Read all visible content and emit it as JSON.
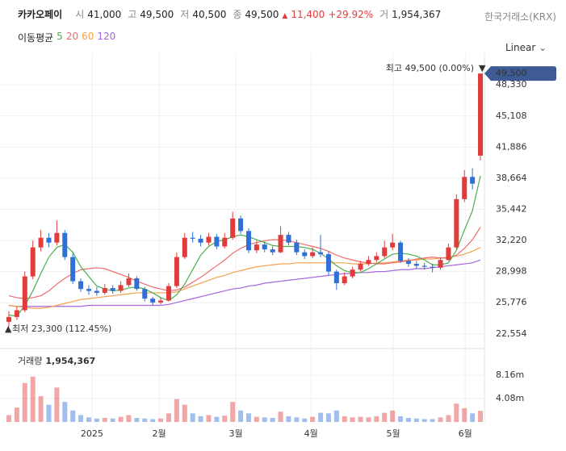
{
  "header": {
    "name": "카카오페이",
    "stats": [
      {
        "label": "시",
        "value": "41,000"
      },
      {
        "label": "고",
        "value": "49,500"
      },
      {
        "label": "저",
        "value": "40,500"
      },
      {
        "label": "종",
        "value": "49,500"
      }
    ],
    "change": "11,400",
    "change_pct": "+29.92%",
    "volume_label": "거",
    "volume_value": "1,954,367",
    "exchange": "한국거래소(KRX)",
    "scale_mode": "Linear"
  },
  "chart_data": {
    "type": "candlestick",
    "xticks": [
      {
        "value": 10.4,
        "label": "2025"
      },
      {
        "value": 18.8,
        "label": "2월"
      },
      {
        "value": 28.4,
        "label": "3월"
      },
      {
        "value": 37.8,
        "label": "4월"
      },
      {
        "value": 48.1,
        "label": "5월"
      },
      {
        "value": 57.1,
        "label": "6월"
      }
    ],
    "xlim": [
      -0.1,
      59.1
    ],
    "ylim": [
      21200,
      50600
    ],
    "yticks": [
      {
        "value": 48330,
        "label": "48,330"
      },
      {
        "value": 45108,
        "label": "45,108"
      },
      {
        "value": 41886,
        "label": "41,886"
      },
      {
        "value": 38664,
        "label": "38,664"
      },
      {
        "value": 35442,
        "label": "35,442"
      },
      {
        "value": 32220,
        "label": "32,220"
      },
      {
        "value": 28998,
        "label": "28,998"
      },
      {
        "value": 25776,
        "label": "25,776"
      },
      {
        "value": 22554,
        "label": "22,554"
      }
    ],
    "grid": true,
    "up_color": "#e03c3c",
    "down_color": "#2f6fd6",
    "open": [
      23800,
      24300,
      25000,
      28500,
      31500,
      32500,
      32000,
      33000,
      30500,
      28000,
      27200,
      27000,
      26800,
      27300,
      27000,
      27600,
      28300,
      27200,
      26200,
      25800,
      26000,
      27500,
      30500,
      32500,
      32400,
      32000,
      32600,
      31600,
      32500,
      34500,
      33200,
      31200,
      31800,
      31300,
      31000,
      32800,
      32000,
      31000,
      30600,
      31000,
      30800,
      29000,
      27800,
      28500,
      29200,
      29800,
      30200,
      30600,
      31500,
      32000,
      30100,
      29800,
      29600,
      29500,
      29400,
      30200,
      31500,
      36500,
      38800,
      41000
    ],
    "high": [
      24900,
      25400,
      29000,
      32200,
      33300,
      33000,
      34300,
      33300,
      30900,
      28300,
      27600,
      27400,
      27700,
      27600,
      28000,
      28800,
      28500,
      27400,
      26400,
      26300,
      27800,
      31000,
      33000,
      33100,
      32800,
      33000,
      32900,
      33000,
      35200,
      34800,
      33500,
      32200,
      32100,
      31600,
      33700,
      33100,
      32300,
      31300,
      31500,
      32800,
      31100,
      29200,
      28900,
      29500,
      30100,
      30600,
      31000,
      32200,
      32900,
      32200,
      30400,
      30100,
      29900,
      29800,
      30500,
      31900,
      37000,
      39500,
      39700,
      49500
    ],
    "low": [
      23300,
      24000,
      24800,
      28200,
      31100,
      31500,
      31700,
      30200,
      27700,
      26900,
      26600,
      26500,
      26600,
      26700,
      26800,
      27400,
      27000,
      25900,
      25500,
      25600,
      25900,
      27300,
      30300,
      32000,
      31600,
      31700,
      31300,
      31400,
      32300,
      32900,
      30900,
      30900,
      31000,
      30700,
      30900,
      31700,
      30700,
      30300,
      30400,
      30500,
      28600,
      27100,
      27600,
      28300,
      29000,
      29600,
      30000,
      30400,
      31200,
      29900,
      29500,
      29300,
      29200,
      28900,
      29200,
      30100,
      31300,
      36200,
      37500,
      40500
    ],
    "close": [
      24300,
      25000,
      28500,
      31500,
      32500,
      32000,
      33000,
      30500,
      28000,
      27200,
      27000,
      26800,
      27300,
      27000,
      27600,
      28300,
      27200,
      26200,
      25800,
      26000,
      27500,
      30500,
      32500,
      32400,
      32000,
      32600,
      31600,
      32500,
      34500,
      33200,
      31200,
      31800,
      31300,
      31000,
      32800,
      32000,
      31000,
      30600,
      31000,
      30800,
      29000,
      27800,
      28500,
      29200,
      29800,
      30200,
      30600,
      31500,
      32000,
      30100,
      29800,
      29600,
      29500,
      29400,
      30200,
      31500,
      36500,
      38800,
      38100,
      49500
    ],
    "ma_title": "이동평균",
    "series": [
      {
        "name": "5",
        "color": "#4caf50",
        "values": [
          24500,
          24400,
          25500,
          27000,
          28800,
          30500,
          31500,
          31800,
          31000,
          29500,
          28500,
          27500,
          27200,
          27000,
          27100,
          27300,
          27400,
          27200,
          26800,
          26300,
          26000,
          26600,
          27700,
          29200,
          30700,
          31600,
          32100,
          32300,
          32600,
          32800,
          32600,
          32300,
          32000,
          31700,
          31600,
          31600,
          31600,
          31500,
          31300,
          30900,
          30300,
          29600,
          29100,
          28900,
          28900,
          29300,
          29800,
          30300,
          30800,
          30900,
          30800,
          30600,
          30200,
          29700,
          29700,
          29900,
          31200,
          33300,
          35300,
          38900
        ]
      },
      {
        "name": "20",
        "color": "#ef6b6b",
        "values": [
          26500,
          26300,
          26200,
          26300,
          26500,
          27000,
          27700,
          28300,
          28800,
          29200,
          29300,
          29400,
          29300,
          29000,
          28700,
          28400,
          28000,
          27700,
          27400,
          27200,
          27000,
          27100,
          27400,
          27900,
          28400,
          29000,
          29600,
          30200,
          30900,
          31400,
          31800,
          32000,
          32200,
          32300,
          32300,
          32200,
          32000,
          31800,
          31600,
          31400,
          31100,
          30700,
          30400,
          30200,
          30000,
          29900,
          29800,
          29800,
          29900,
          30000,
          30100,
          30300,
          30400,
          30500,
          30400,
          30400,
          30700,
          31400,
          32300,
          33600
        ]
      },
      {
        "name": "60",
        "color": "#f5a04a",
        "values": [
          25500,
          25400,
          25300,
          25200,
          25200,
          25300,
          25500,
          25700,
          25900,
          26100,
          26200,
          26300,
          26400,
          26500,
          26600,
          26700,
          26800,
          26800,
          26800,
          26800,
          26800,
          26900,
          27200,
          27500,
          27800,
          28100,
          28400,
          28600,
          28900,
          29100,
          29300,
          29500,
          29600,
          29700,
          29800,
          29800,
          29900,
          29900,
          29900,
          29900,
          29900,
          29900,
          29900,
          29800,
          29800,
          29800,
          29900,
          29900,
          30000,
          30100,
          30200,
          30200,
          30300,
          30300,
          30400,
          30500,
          30600,
          30800,
          31100,
          31500
        ]
      },
      {
        "name": "120",
        "color": "#a566e0",
        "values": [
          25500,
          25400,
          25400,
          25400,
          25400,
          25400,
          25400,
          25400,
          25400,
          25400,
          25500,
          25500,
          25500,
          25500,
          25500,
          25500,
          25500,
          25500,
          25500,
          25500,
          25600,
          25800,
          26000,
          26200,
          26400,
          26600,
          26800,
          27000,
          27200,
          27300,
          27500,
          27600,
          27800,
          27900,
          28000,
          28100,
          28200,
          28300,
          28400,
          28500,
          28600,
          28700,
          28800,
          28800,
          28900,
          28900,
          29000,
          29000,
          29100,
          29200,
          29200,
          29300,
          29300,
          29400,
          29500,
          29600,
          29700,
          29800,
          29900,
          30200
        ]
      }
    ],
    "high_label": "최고 49,500 (0.00%)",
    "low_label": "최저 23,300 (112.45%)",
    "last_price_label": "49,500",
    "volume": {
      "title": "거래량",
      "last_label": "1,954,367",
      "ylim": [
        0,
        12380000
      ],
      "yticks": [
        {
          "value": 8160000,
          "label": "8.16m"
        },
        {
          "value": 4080000,
          "label": "4.08m"
        }
      ],
      "values": [
        1200000,
        2500000,
        6800000,
        7900000,
        4500000,
        3000000,
        6000000,
        3500000,
        2000000,
        1200000,
        800000,
        600000,
        700000,
        600000,
        900000,
        1200000,
        700000,
        600000,
        500000,
        600000,
        1500000,
        4000000,
        3000000,
        1500000,
        1000000,
        1200000,
        900000,
        1100000,
        3500000,
        2000000,
        1500000,
        900000,
        800000,
        700000,
        1800000,
        1000000,
        800000,
        600000,
        900000,
        1600000,
        1500000,
        2000000,
        1000000,
        800000,
        900000,
        800000,
        1000000,
        1600000,
        2000000,
        1000000,
        700000,
        600000,
        500000,
        500000,
        800000,
        1200000,
        3200000,
        2400000,
        1500000,
        1954367
      ]
    }
  }
}
